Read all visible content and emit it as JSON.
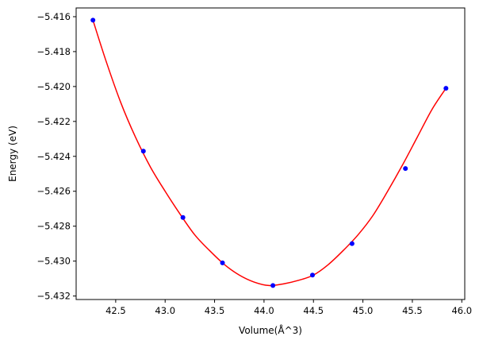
{
  "chart_data": {
    "type": "scatter",
    "title": "",
    "xlabel": "Volume(Å^3)",
    "ylabel": "Energy (eV)",
    "xlim": [
      42.1,
      46.03
    ],
    "ylim": [
      -5.4322,
      -5.4155
    ],
    "x_ticks": [
      42.5,
      43.0,
      43.5,
      44.0,
      44.5,
      45.0,
      45.5,
      46.0
    ],
    "x_tick_labels": [
      "42.5",
      "43.0",
      "43.5",
      "44.0",
      "44.5",
      "45.0",
      "45.5",
      "46.0"
    ],
    "y_ticks": [
      -5.432,
      -5.43,
      -5.428,
      -5.426,
      -5.424,
      -5.422,
      -5.42,
      -5.418,
      -5.416
    ],
    "y_tick_labels": [
      "−5.432",
      "−5.430",
      "−5.428",
      "−5.426",
      "−5.424",
      "−5.422",
      "−5.420",
      "−5.418",
      "−5.416"
    ],
    "grid": false,
    "series": [
      {
        "kind": "points",
        "color": "#0000ff",
        "x": [
          42.27,
          42.78,
          43.18,
          43.58,
          44.09,
          44.49,
          44.89,
          45.43,
          45.84
        ],
        "y": [
          -5.4162,
          -5.4237,
          -5.4275,
          -5.4301,
          -5.4314,
          -5.4308,
          -5.429,
          -5.4247,
          -5.4201
        ]
      },
      {
        "kind": "fit-curve",
        "color": "#ff0000",
        "x": [
          42.27,
          42.4,
          42.55,
          42.7,
          42.85,
          43.0,
          43.15,
          43.3,
          43.45,
          43.6,
          43.75,
          43.9,
          44.05,
          44.2,
          44.35,
          44.5,
          44.65,
          44.8,
          44.95,
          45.1,
          45.25,
          45.4,
          45.55,
          45.7,
          45.84
        ],
        "y": [
          -5.4162,
          -5.4185,
          -5.4209,
          -5.4229,
          -5.4246,
          -5.426,
          -5.4273,
          -5.4285,
          -5.4294,
          -5.4302,
          -5.4308,
          -5.4312,
          -5.4314,
          -5.4313,
          -5.4311,
          -5.4308,
          -5.4302,
          -5.4294,
          -5.4285,
          -5.4274,
          -5.426,
          -5.4245,
          -5.4229,
          -5.4213,
          -5.4201
        ]
      }
    ]
  }
}
